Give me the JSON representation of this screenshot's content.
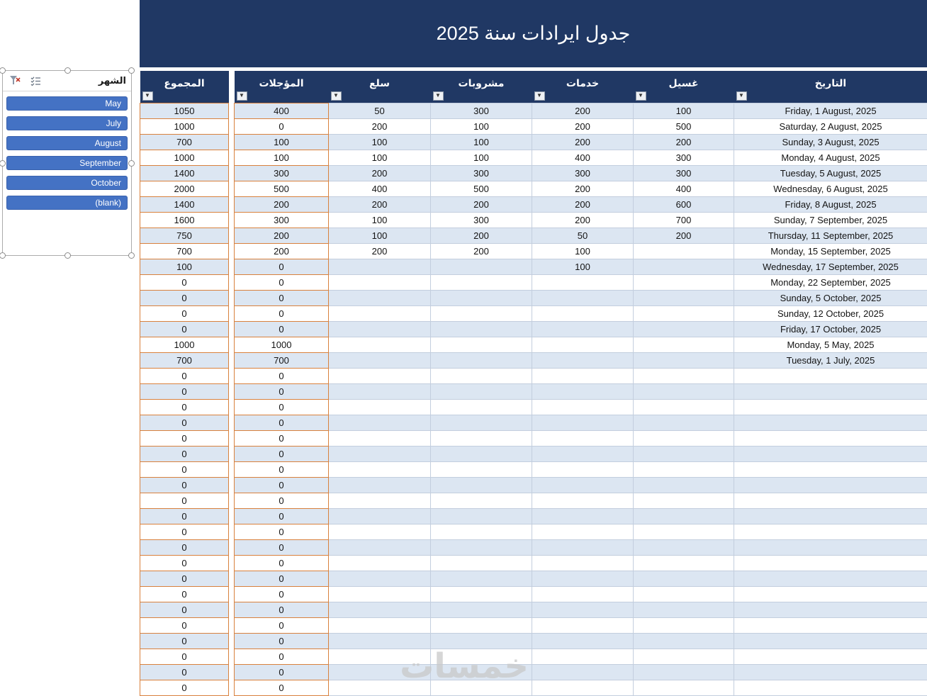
{
  "app": {
    "title_banner": "جدول ايرادات سنة 2025"
  },
  "slicer": {
    "title": "الشهر",
    "items": [
      {
        "label": "May"
      },
      {
        "label": "July"
      },
      {
        "label": "August"
      },
      {
        "label": "September"
      },
      {
        "label": "October"
      },
      {
        "label": "(blank)"
      }
    ]
  },
  "table": {
    "columns": [
      {
        "key": "total",
        "label": "المجموع"
      },
      {
        "key": "deferred",
        "label": "المؤجلات"
      },
      {
        "key": "goods",
        "label": "سلع"
      },
      {
        "key": "drinks",
        "label": "مشروبات"
      },
      {
        "key": "services",
        "label": "خدمات"
      },
      {
        "key": "washing",
        "label": "غسيل"
      },
      {
        "key": "date",
        "label": "التاريخ"
      }
    ],
    "rows": [
      {
        "total": "1050",
        "deferred": "400",
        "goods": "50",
        "drinks": "300",
        "services": "200",
        "washing": "100",
        "date": "Friday, 1 August, 2025"
      },
      {
        "total": "1000",
        "deferred": "0",
        "goods": "200",
        "drinks": "100",
        "services": "200",
        "washing": "500",
        "date": "Saturday, 2 August, 2025"
      },
      {
        "total": "700",
        "deferred": "100",
        "goods": "100",
        "drinks": "100",
        "services": "200",
        "washing": "200",
        "date": "Sunday, 3 August, 2025"
      },
      {
        "total": "1000",
        "deferred": "100",
        "goods": "100",
        "drinks": "100",
        "services": "400",
        "washing": "300",
        "date": "Monday, 4 August, 2025"
      },
      {
        "total": "1400",
        "deferred": "300",
        "goods": "200",
        "drinks": "300",
        "services": "300",
        "washing": "300",
        "date": "Tuesday, 5 August, 2025"
      },
      {
        "total": "2000",
        "deferred": "500",
        "goods": "400",
        "drinks": "500",
        "services": "200",
        "washing": "400",
        "date": "Wednesday, 6 August, 2025"
      },
      {
        "total": "1400",
        "deferred": "200",
        "goods": "200",
        "drinks": "200",
        "services": "200",
        "washing": "600",
        "date": "Friday, 8 August, 2025"
      },
      {
        "total": "1600",
        "deferred": "300",
        "goods": "100",
        "drinks": "300",
        "services": "200",
        "washing": "700",
        "date": "Sunday, 7 September, 2025"
      },
      {
        "total": "750",
        "deferred": "200",
        "goods": "100",
        "drinks": "200",
        "services": "50",
        "washing": "200",
        "date": "Thursday, 11 September, 2025"
      },
      {
        "total": "700",
        "deferred": "200",
        "goods": "200",
        "drinks": "200",
        "services": "100",
        "washing": "",
        "date": "Monday, 15 September, 2025"
      },
      {
        "total": "100",
        "deferred": "0",
        "goods": "",
        "drinks": "",
        "services": "100",
        "washing": "",
        "date": "Wednesday, 17 September, 2025"
      },
      {
        "total": "0",
        "deferred": "0",
        "goods": "",
        "drinks": "",
        "services": "",
        "washing": "",
        "date": "Monday, 22 September, 2025"
      },
      {
        "total": "0",
        "deferred": "0",
        "goods": "",
        "drinks": "",
        "services": "",
        "washing": "",
        "date": "Sunday, 5 October, 2025"
      },
      {
        "total": "0",
        "deferred": "0",
        "goods": "",
        "drinks": "",
        "services": "",
        "washing": "",
        "date": "Sunday, 12 October, 2025"
      },
      {
        "total": "0",
        "deferred": "0",
        "goods": "",
        "drinks": "",
        "services": "",
        "washing": "",
        "date": "Friday, 17 October, 2025"
      },
      {
        "total": "1000",
        "deferred": "1000",
        "goods": "",
        "drinks": "",
        "services": "",
        "washing": "",
        "date": "Monday, 5 May, 2025"
      },
      {
        "total": "700",
        "deferred": "700",
        "goods": "",
        "drinks": "",
        "services": "",
        "washing": "",
        "date": "Tuesday, 1 July, 2025"
      }
    ],
    "filler_row": {
      "total": "0",
      "deferred": "0",
      "goods": "",
      "drinks": "",
      "services": "",
      "washing": "",
      "date": ""
    },
    "filler_row_count": 21
  },
  "watermark": "خمسات",
  "colors": {
    "navy": "#203864",
    "band": "#DCE6F2",
    "slicer_blue": "#4472C4",
    "slicer_border": "#3A62AD",
    "orange": "#D9813D",
    "grid": "#C3CEDE"
  }
}
